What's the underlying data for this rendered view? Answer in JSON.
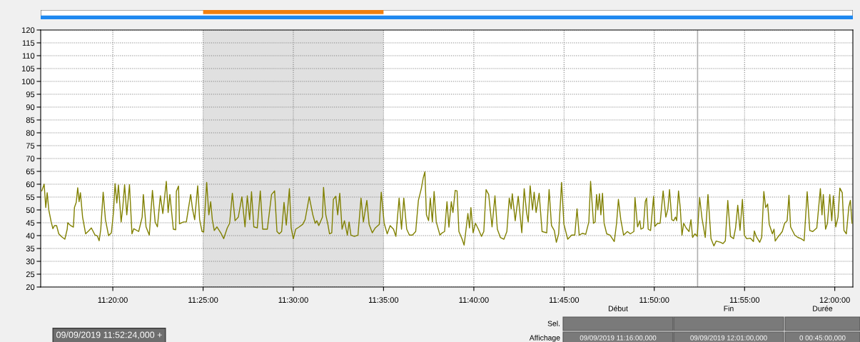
{
  "chart_data": {
    "type": "line",
    "x": [
      11.2677,
      11.2699,
      11.2714,
      11.2727,
      11.2742,
      11.2764,
      11.278,
      11.2794,
      11.2814,
      11.2834,
      11.2862,
      11.289,
      11.2912,
      11.2917,
      11.2944,
      11.2969,
      11.2979,
      11.2995,
      11.3009,
      11.3022,
      11.3034,
      11.3054,
      11.3082,
      11.3114,
      11.3135,
      11.3169,
      11.319,
      11.3207,
      11.3222,
      11.3244,
      11.3265,
      11.3294,
      11.332,
      11.3339,
      11.3354,
      11.337,
      11.3385,
      11.341,
      11.3425,
      11.3442,
      11.3462,
      11.3487,
      11.351,
      11.3527,
      11.3572,
      11.3604,
      11.3615,
      11.364,
      11.367,
      11.3699,
      11.3724,
      11.3745,
      11.3772,
      11.3795,
      11.3827,
      11.3844,
      11.386,
      11.3892,
      11.3914,
      11.392,
      11.394,
      11.3949,
      11.3985,
      11.4012,
      11.4052,
      11.4069,
      11.4089,
      11.4117,
      11.4135,
      11.4157,
      11.4172,
      11.42,
      11.422,
      11.4237,
      11.4252,
      11.427,
      11.4295,
      11.4335,
      11.4357,
      11.439,
      11.4412,
      11.4437,
      11.4462,
      11.4492,
      11.4525,
      11.4554,
      11.4575,
      11.4597,
      11.4614,
      11.4635,
      11.4667,
      11.4695,
      11.4717,
      11.476,
      11.4799,
      11.4827,
      11.4849,
      11.487,
      11.4892,
      11.4914,
      11.4935,
      11.4964,
      11.498,
      11.5,
      11.5022,
      11.5055,
      11.5087,
      11.5109,
      11.5147,
      11.518,
      11.5202,
      11.5217,
      11.5235,
      11.5269,
      11.5279,
      11.53,
      11.5319,
      11.5334,
      11.5355,
      11.537,
      11.5392,
      11.541,
      11.5429,
      11.545,
      11.5472,
      11.5499,
      11.5515,
      11.5532,
      11.5564,
      11.5597,
      11.5625,
      11.5647,
      11.5679,
      11.57,
      11.5729,
      11.5757,
      11.5794,
      11.5812,
      11.5839,
      11.5867,
      11.5894,
      11.5925,
      11.5947,
      11.5977,
      11.5999,
      11.602,
      11.6047,
      11.6072,
      11.61,
      11.613,
      11.6155,
      11.6182,
      11.62,
      11.6215,
      11.6229,
      11.6249,
      11.6265,
      11.6284,
      11.63,
      11.632,
      11.6354,
      11.6375,
      11.6397,
      11.6419,
      11.6437,
      11.6459,
      11.6474,
      11.6495,
      11.6512,
      11.6529,
      11.6557,
      11.6577,
      11.659,
      11.6612,
      11.6627,
      11.664,
      11.666,
      11.6682,
      11.6709,
      11.6737,
      11.6759,
      11.678,
      11.6804,
      11.6835,
      11.6862,
      11.6884,
      11.6912,
      11.6945,
      11.6972,
      11.6994,
      11.7012,
      11.7022,
      11.7049,
      11.7077,
      11.711,
      11.7132,
      11.7154,
      11.7169,
      11.7187,
      11.7209,
      11.7224,
      11.7242,
      11.727,
      11.7297,
      11.734,
      11.7362,
      11.7384,
      11.741,
      11.7429,
      11.745,
      11.7477,
      11.7499,
      11.7534,
      11.757,
      11.7599,
      11.762,
      11.764,
      11.7669,
      11.77,
      11.7729,
      11.7745,
      11.7772,
      11.7787,
      11.78,
      11.7812,
      11.7827,
      11.784,
      11.7855,
      11.787,
      11.7894,
      11.7925,
      11.7964,
      11.7985,
      11.8002,
      11.8024,
      11.805,
      11.8085,
      11.8112,
      11.8145,
      11.8155,
      11.8179,
      11.82,
      11.821,
      11.8232,
      11.825,
      11.8262,
      11.8277,
      11.8299,
      11.8327,
      11.8339,
      11.8364,
      11.8387,
      11.8415,
      11.844,
      11.8459,
      11.8474,
      11.8495,
      11.8512,
      11.8529,
      11.854,
      11.8557,
      11.8572,
      11.8589,
      11.8605,
      11.8627,
      11.8654,
      11.8672,
      11.8687,
      11.8709,
      11.873,
      11.8752,
      11.8774,
      11.8804,
      11.8829,
      11.8857,
      11.8884,
      11.8905,
      11.8945,
      11.8967,
      11.8989,
      11.9012,
      11.9037,
      11.9065,
      11.9084,
      11.9104,
      11.9125,
      11.9147,
      11.9165,
      11.9187,
      11.922,
      11.9249,
      11.9257,
      11.9274,
      11.9307,
      11.9325,
      11.9345,
      11.9362,
      11.938,
      11.9395,
      11.9424,
      11.9439,
      11.945,
      11.9472,
      11.9499,
      11.9515,
      11.9537,
      11.956,
      11.9577,
      11.9592,
      11.963,
      11.9659,
      11.969,
      11.9717,
      11.9745,
      11.9769,
      11.9797,
      11.9834,
      11.9867,
      11.9882,
      11.9894,
      11.9915,
      11.9932,
      11.9954,
      11.9972,
      11.9987,
      12.0009,
      12.003,
      12.0047,
      12.0069,
      12.0085,
      12.0107,
      12.013,
      12.0144,
      12.0159
    ],
    "series": [
      {
        "color": "#808000",
        "values": [
          57.4,
          60,
          50.9,
          56.7,
          50,
          45.3,
          42.7,
          43.9,
          43.9,
          40.7,
          39.5,
          38.6,
          42.5,
          45,
          43.9,
          43.3,
          51,
          52.9,
          58.6,
          53.2,
          56.7,
          47.2,
          40.7,
          42,
          43,
          40.2,
          39.9,
          38,
          42.5,
          56.9,
          46.2,
          40,
          41.1,
          49,
          60.2,
          52.7,
          59.7,
          45.3,
          50.9,
          59.8,
          48.1,
          59.8,
          40.7,
          42.7,
          41.6,
          47.2,
          56,
          43.4,
          40.2,
          57.6,
          45.3,
          43.4,
          55.5,
          48.6,
          61.1,
          49,
          56,
          42.5,
          42.3,
          57.2,
          59.3,
          44.6,
          45.3,
          45.3,
          56,
          50.4,
          46.2,
          59.4,
          46.2,
          41.6,
          41.4,
          60.7,
          48.1,
          53.2,
          46.2,
          42,
          43.4,
          40.7,
          38.8,
          43,
          44.8,
          56.5,
          45.8,
          47.2,
          55.1,
          43.4,
          55.5,
          46.2,
          57.1,
          43.4,
          43,
          57.4,
          42.5,
          42.5,
          56,
          57.4,
          41.6,
          40.7,
          41.6,
          52.9,
          44.1,
          58.3,
          43,
          38.8,
          42.5,
          43.4,
          44.4,
          46.2,
          55.1,
          48.1,
          44.8,
          45.8,
          43.9,
          47.2,
          58.8,
          48.1,
          44.4,
          40.7,
          41.1,
          54.1,
          55.3,
          48.1,
          56.5,
          42.5,
          45.8,
          40.2,
          45.3,
          40.2,
          39.7,
          40.2,
          54.6,
          45.3,
          53.7,
          44.4,
          41.1,
          43,
          44.4,
          56.9,
          44.8,
          40.7,
          43.9,
          42.5,
          39.7,
          54.6,
          42.5,
          54.6,
          42.5,
          40.2,
          40.2,
          41.6,
          53.7,
          58.3,
          62.5,
          64.8,
          48.1,
          45.8,
          54.6,
          45.3,
          57.2,
          45.3,
          40.2,
          41.1,
          41.6,
          53.2,
          43.3,
          53.2,
          49,
          57.6,
          57.4,
          41.6,
          38.8,
          36.3,
          40.7,
          48.6,
          43,
          50.9,
          41.1,
          44.8,
          42.5,
          39.7,
          41.6,
          57.9,
          56,
          43.4,
          55.5,
          42.5,
          39.3,
          38.6,
          41.6,
          54.6,
          50.4,
          56.3,
          45.8,
          55.3,
          41.1,
          58.3,
          49,
          45.3,
          59.4,
          50,
          56.9,
          49,
          56.5,
          41.6,
          41.1,
          57.9,
          43.9,
          42,
          37.4,
          40.7,
          60.7,
          44.4,
          38.6,
          40.2,
          40.2,
          50.4,
          40.2,
          40.9,
          40.5,
          45.3,
          61.1,
          44.8,
          45.3,
          56,
          50,
          56.3,
          48.1,
          56.5,
          44.8,
          40.7,
          40.2,
          37.7,
          44.8,
          54.1,
          46.2,
          40.2,
          41.6,
          40.7,
          41.6,
          54.8,
          43.4,
          45.8,
          42.5,
          43,
          53.2,
          54.6,
          42.5,
          42,
          55.3,
          43.6,
          44.8,
          44.8,
          57.4,
          47.2,
          50.4,
          57.9,
          46.2,
          45.8,
          47.2,
          45.8,
          57.4,
          51.3,
          40.2,
          44.8,
          43,
          41.6,
          46.2,
          39.3,
          40.7,
          39.7,
          54.8,
          46.7,
          39.3,
          56,
          38.8,
          36,
          37.9,
          37.4,
          36.9,
          37.9,
          53.7,
          39.7,
          38.8,
          43,
          51.8,
          42,
          54.1,
          40.2,
          38.8,
          39,
          37.7,
          41.8,
          39.7,
          37.4,
          39.3,
          57.2,
          50.9,
          52.3,
          44.4,
          40.7,
          42.5,
          37.9,
          39.3,
          40.7,
          41.6,
          44.8,
          45.8,
          55.7,
          43.4,
          40.2,
          39.3,
          38.8,
          38,
          57.1,
          42,
          41.6,
          43,
          58.3,
          48.1,
          56,
          42.5,
          44.8,
          56,
          45.8,
          55.5,
          43.4,
          47.2,
          58.5,
          56.7,
          42,
          40.7,
          51.3,
          53.7,
          44.8
        ]
      }
    ],
    "xlim": [
      11.2667,
      12.0167
    ],
    "xticks": [
      {
        "value": 11.3333,
        "label": "11:20:00"
      },
      {
        "value": 11.4167,
        "label": "11:25:00"
      },
      {
        "value": 11.5,
        "label": "11:30:00"
      },
      {
        "value": 11.5833,
        "label": "11:35:00"
      },
      {
        "value": 11.6667,
        "label": "11:40:00"
      },
      {
        "value": 11.75,
        "label": "11:45:00"
      },
      {
        "value": 11.8333,
        "label": "11:50:00"
      },
      {
        "value": 11.9167,
        "label": "11:55:00"
      },
      {
        "value": 12.0,
        "label": "12:00:00"
      }
    ],
    "ylim": [
      20,
      120
    ],
    "yticks": [
      20,
      25,
      30,
      35,
      40,
      45,
      50,
      55,
      60,
      65,
      70,
      75,
      80,
      85,
      90,
      95,
      100,
      105,
      110,
      115,
      120
    ],
    "grid": true,
    "bands": [
      {
        "axis": "x",
        "from": 11.4167,
        "to": 11.5833,
        "color": "#e0e0e0"
      }
    ],
    "ref_lines": [
      {
        "axis": "x",
        "value": 11.8733,
        "color": "#b0b0b0"
      }
    ],
    "annotations": [
      "Début",
      "Fin",
      "Durée",
      "Sel.",
      "Affichage",
      "09/09/2019 11:16:00,000",
      "09/09/2019 12:01:00,000",
      "0 00:45:00,000",
      "09/09/2019 11:52:24,000 +"
    ]
  }
}
